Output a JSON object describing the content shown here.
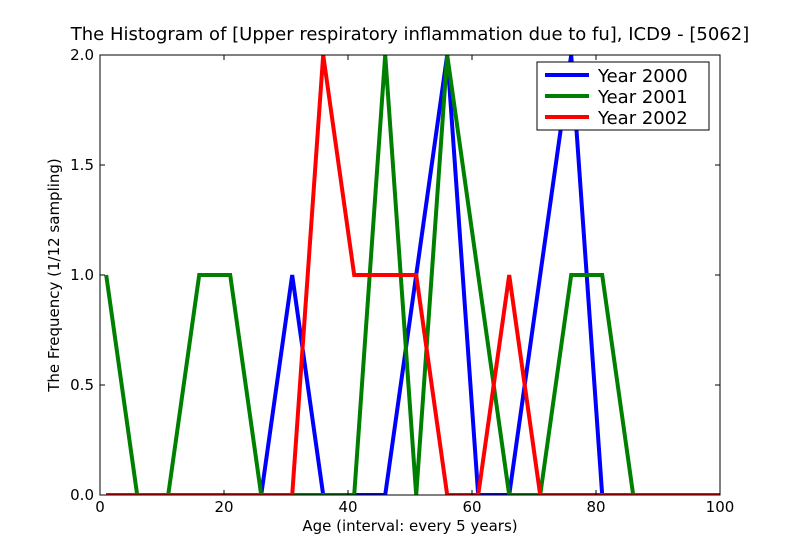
{
  "chart_data": {
    "type": "line",
    "title": "The Histogram of [Upper respiratory inflammation due to fu], ICD9 - [5062]",
    "xlabel": "Age (interval: every 5 years)",
    "ylabel": "The Frequency (1/12 sampling)",
    "xlim": [
      0,
      100
    ],
    "ylim": [
      0,
      2.0
    ],
    "x_ticks": [
      "0",
      "20",
      "40",
      "60",
      "80",
      "100"
    ],
    "y_ticks": [
      "0.0",
      "0.5",
      "1.0",
      "1.5",
      "2.0"
    ],
    "grid": false,
    "legend_position": "top-right",
    "x": [
      1,
      6,
      11,
      16,
      21,
      26,
      31,
      36,
      41,
      46,
      51,
      56,
      61,
      66,
      71,
      76,
      81,
      86,
      91,
      96,
      101
    ],
    "series": [
      {
        "name": "Year 2000",
        "color": "#0000ff",
        "values": [
          0,
          0,
          0,
          0,
          0,
          0,
          1,
          0,
          0,
          0,
          1,
          2,
          0,
          0,
          1,
          2,
          0,
          0,
          0,
          0,
          0
        ]
      },
      {
        "name": "Year 2001",
        "color": "#008000",
        "values": [
          1,
          0,
          0,
          1,
          1,
          0,
          0,
          0,
          0,
          2,
          0,
          2,
          1,
          0,
          0,
          1,
          1,
          0,
          0,
          0,
          0
        ]
      },
      {
        "name": "Year 2002",
        "color": "#ff0000",
        "values": [
          0,
          0,
          0,
          0,
          0,
          0,
          0,
          2,
          1,
          1,
          1,
          0,
          0,
          1,
          0,
          0,
          0,
          0,
          0,
          0,
          0
        ]
      }
    ]
  }
}
